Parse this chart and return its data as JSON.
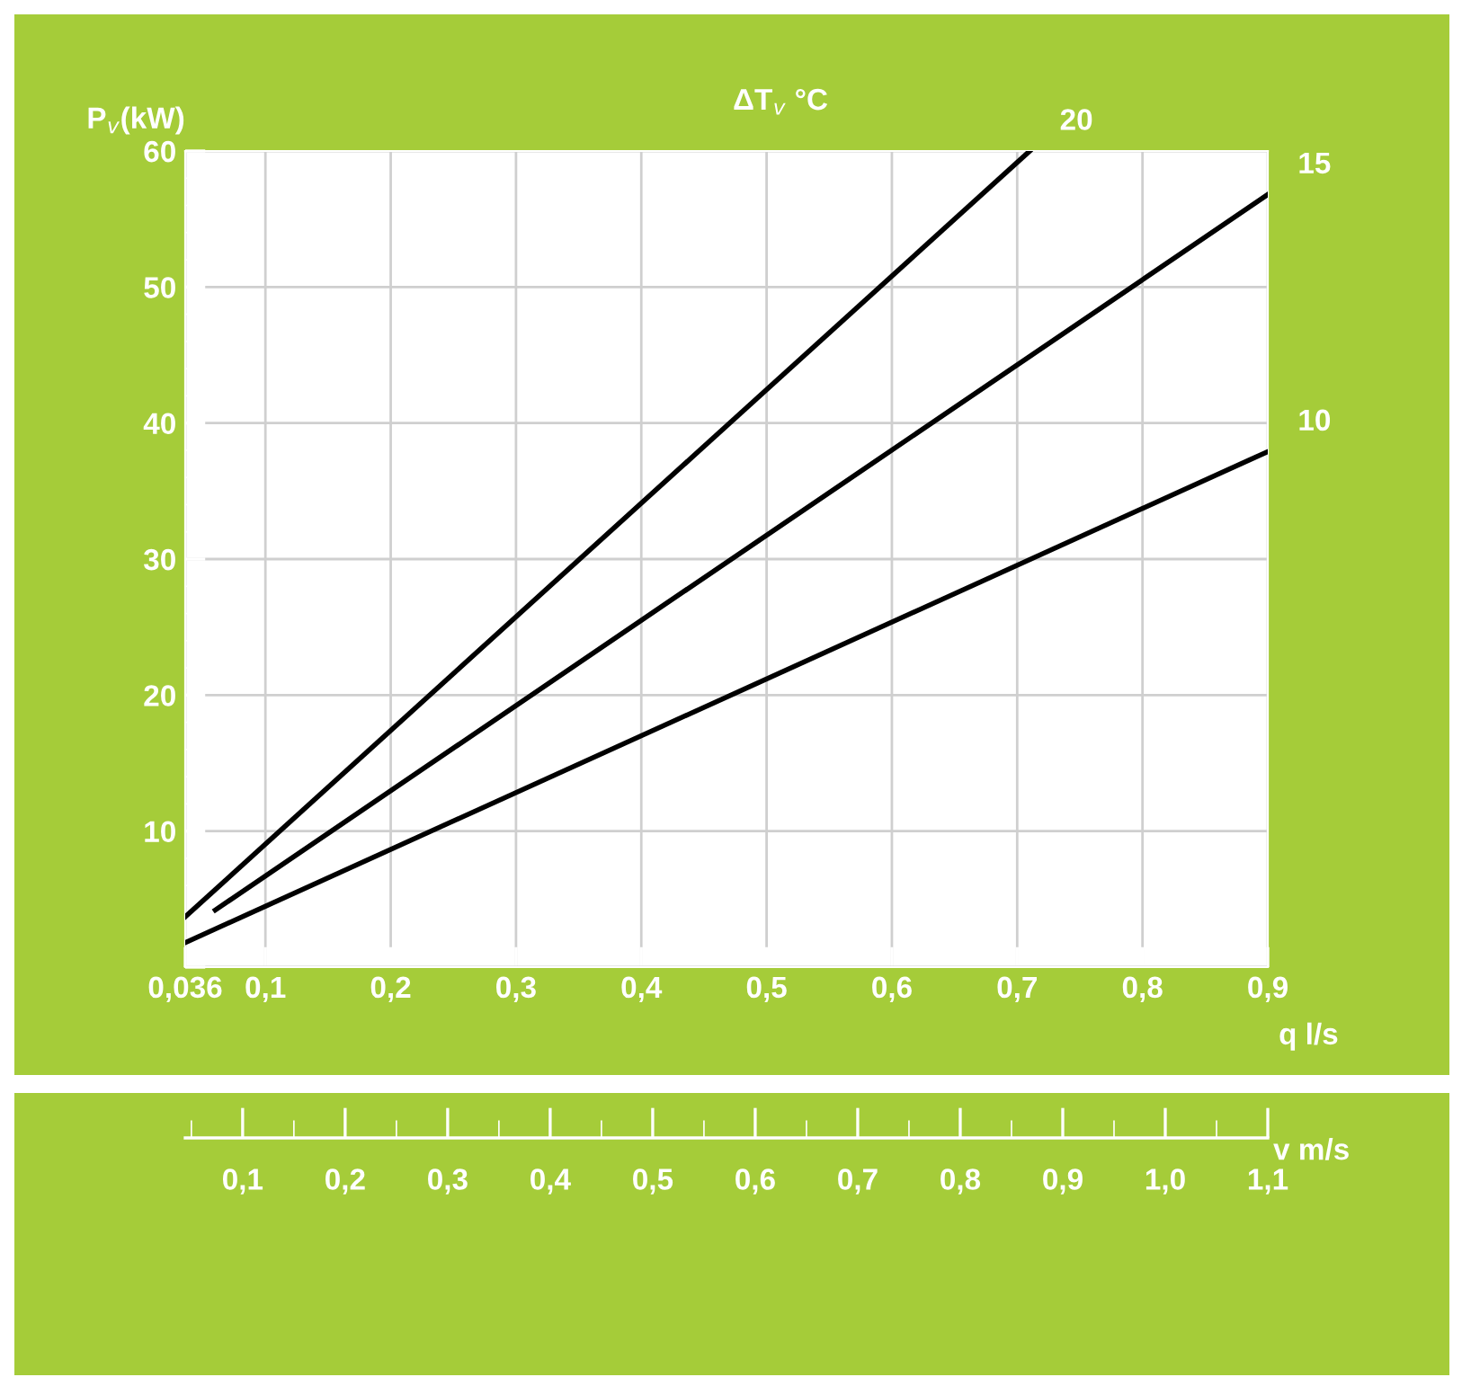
{
  "chart_data": {
    "type": "line",
    "ylabel": "P$_{v}$(kW)",
    "xlabel": "q l/s",
    "x2label": "v m/s",
    "legend_title": "ΔT$_{v}$ °C",
    "series": [
      {
        "name": "20",
        "color": "#000000",
        "x": [
          0.036,
          0.71
        ],
        "values": [
          3.7,
          60
        ]
      },
      {
        "name": "15",
        "color": "#000000",
        "x": [
          0.06,
          0.9
        ],
        "values": [
          4.2,
          56.8
        ]
      },
      {
        "name": "10",
        "color": "#000000",
        "x": [
          0.036,
          0.9
        ],
        "values": [
          1.8,
          37.9
        ]
      }
    ],
    "xlim": [
      0.036,
      0.9
    ],
    "ylim": [
      0,
      60
    ],
    "xticks": [
      {
        "value": 0.036,
        "label": "0,036"
      },
      {
        "value": 0.1,
        "label": "0,1"
      },
      {
        "value": 0.2,
        "label": "0,2"
      },
      {
        "value": 0.3,
        "label": "0,3"
      },
      {
        "value": 0.4,
        "label": "0,4"
      },
      {
        "value": 0.5,
        "label": "0,5"
      },
      {
        "value": 0.6,
        "label": "0,6"
      },
      {
        "value": 0.7,
        "label": "0,7"
      },
      {
        "value": 0.8,
        "label": "0,8"
      },
      {
        "value": 0.9,
        "label": "0,9"
      }
    ],
    "yticks": [
      {
        "value": 0,
        "label": null
      },
      10,
      20,
      30,
      40,
      50,
      60
    ],
    "x2lim": [
      0.044,
      1.1
    ],
    "x2ticks": [
      {
        "value": 0.1,
        "label": "0,1"
      },
      {
        "value": 0.2,
        "label": "0,2"
      },
      {
        "value": 0.3,
        "label": "0,3"
      },
      {
        "value": 0.4,
        "label": "0,4"
      },
      {
        "value": 0.5,
        "label": "0,5"
      },
      {
        "value": 0.6,
        "label": "0,6"
      },
      {
        "value": 0.7,
        "label": "0,7"
      },
      {
        "value": 0.8,
        "label": "0,8"
      },
      {
        "value": 0.9,
        "label": "0,9"
      },
      {
        "value": 1.0,
        "label": "1,0"
      },
      {
        "value": 1.1,
        "label": "1,1"
      }
    ],
    "grid": true,
    "marker": "none",
    "line_style": "solid",
    "legend": false
  }
}
